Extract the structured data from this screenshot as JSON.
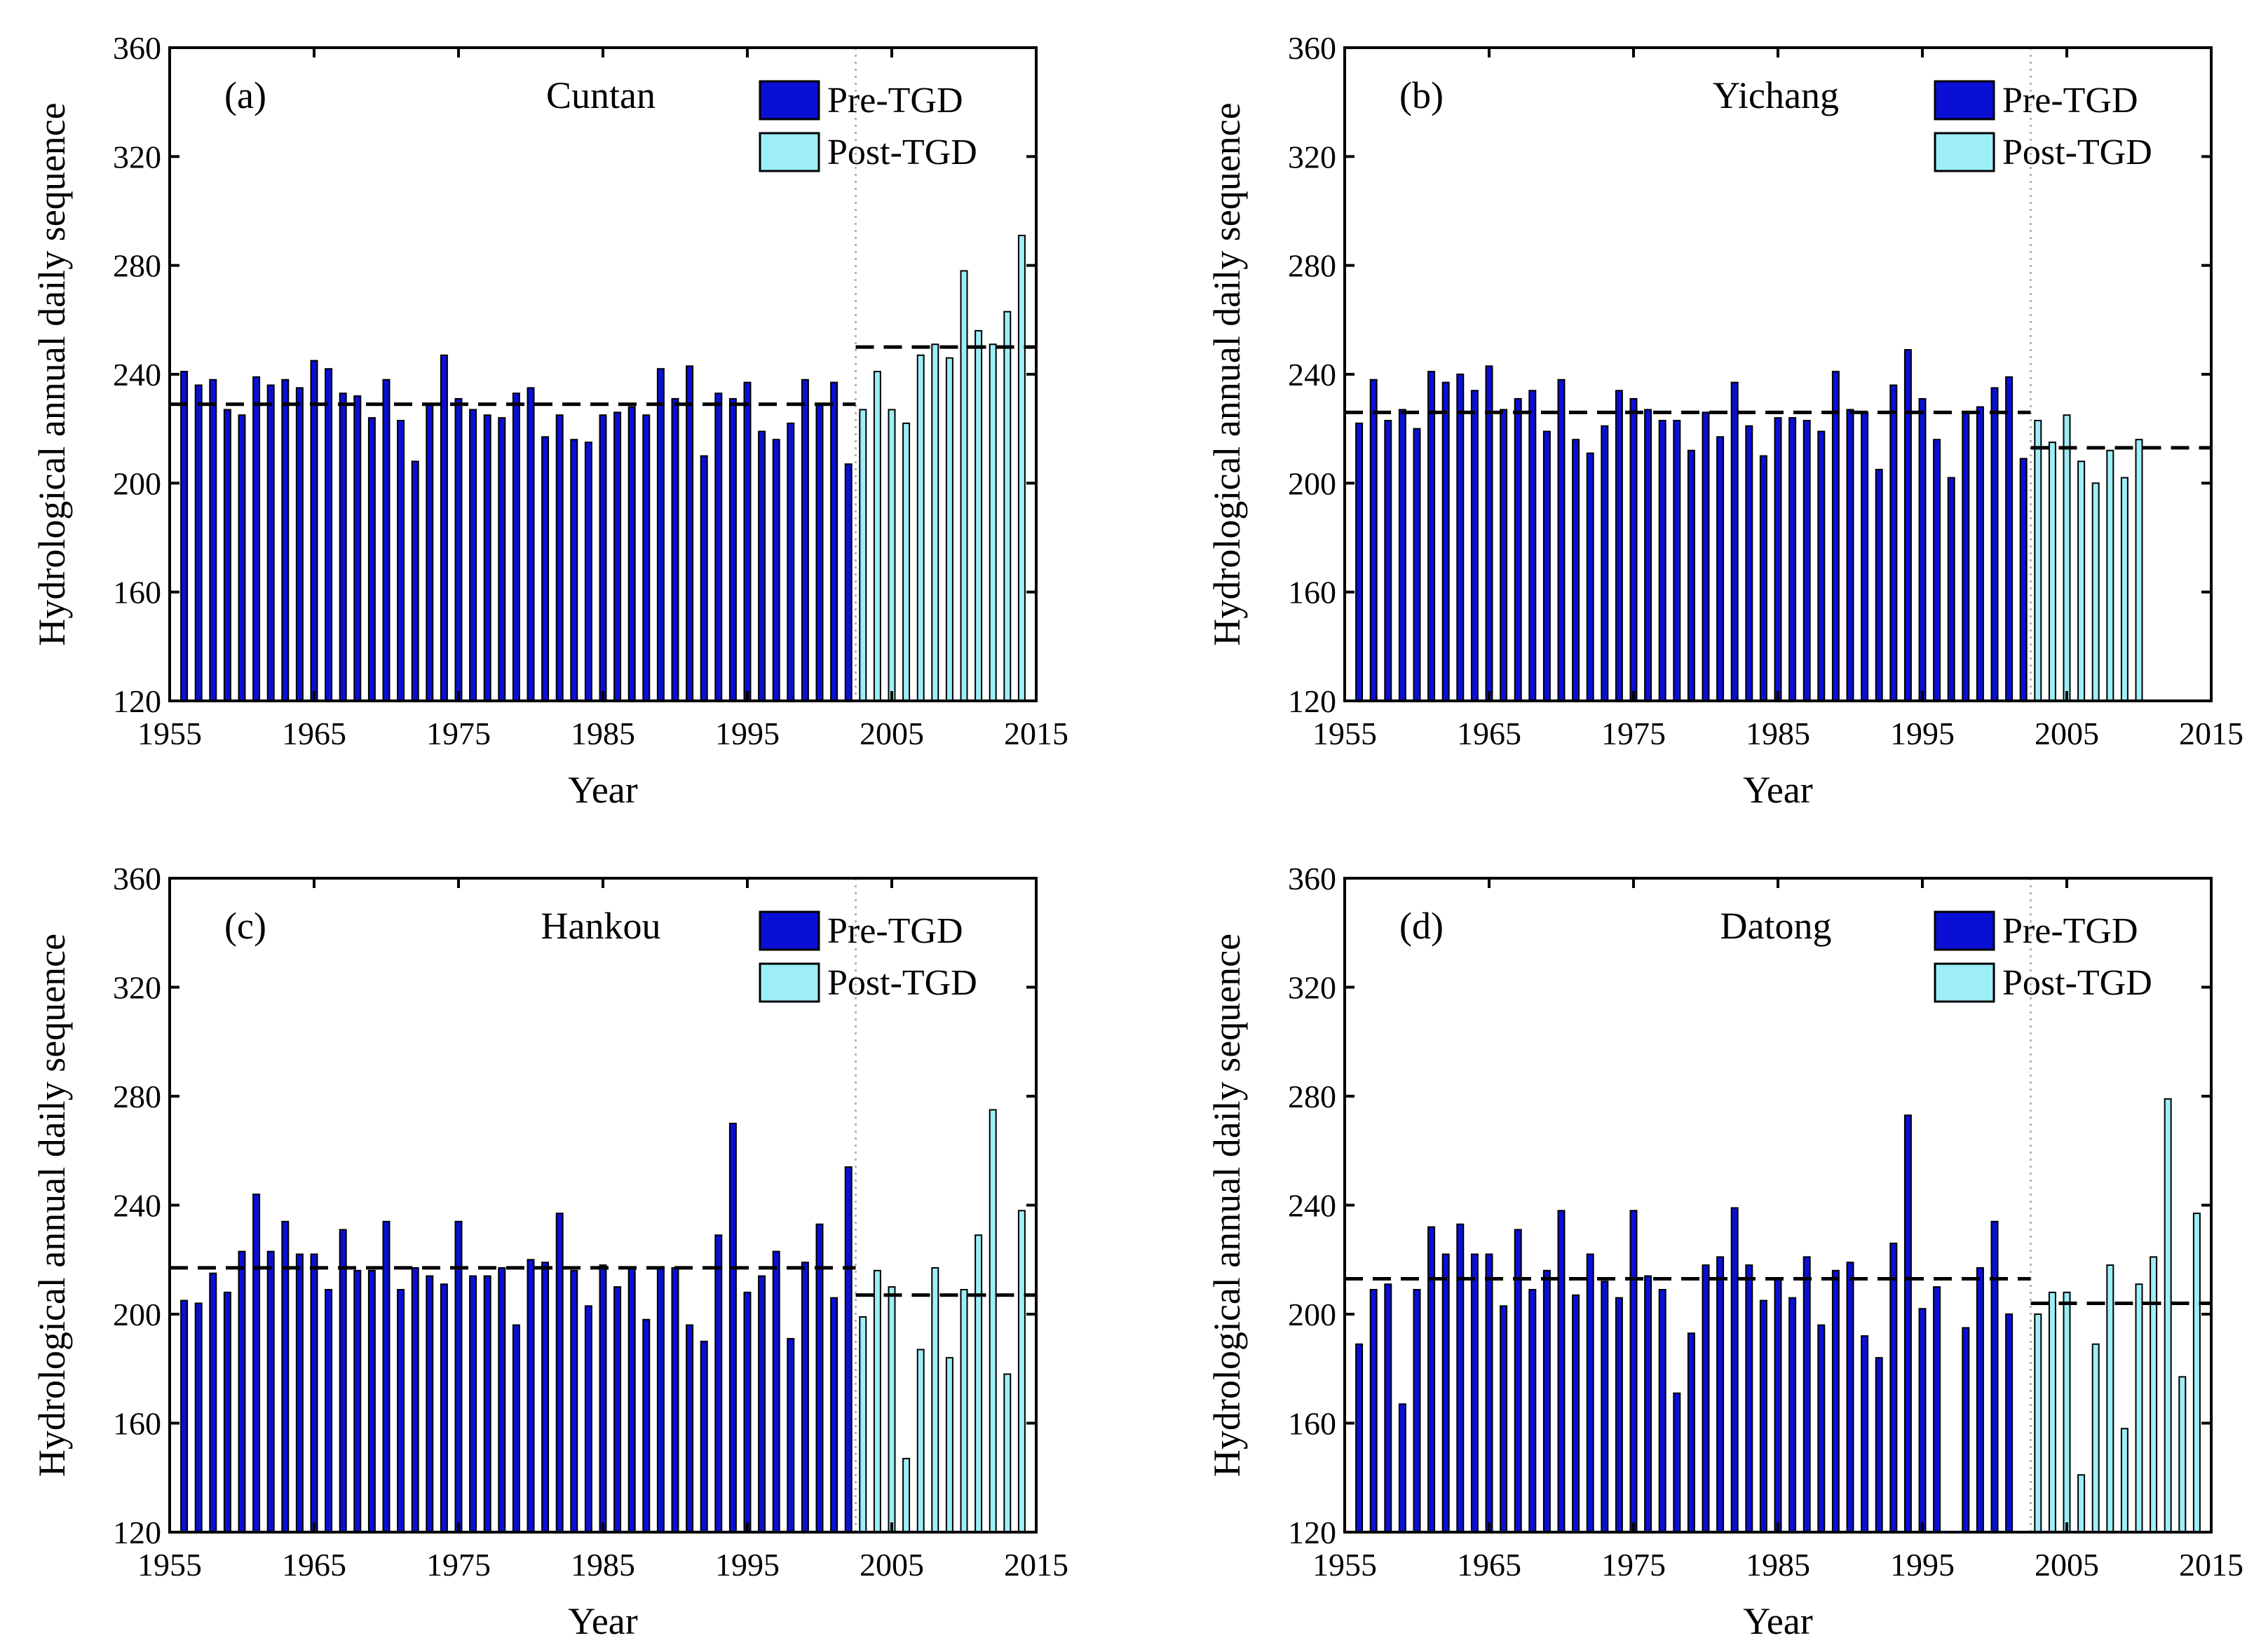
{
  "colors": {
    "pre_tgd": "#0a0fd6",
    "post_tgd": "#9deef6",
    "bar_stroke": "#000000",
    "mean_line": "#000000",
    "divider": "#b4b4b4"
  },
  "chart_data": [
    {
      "type": "bar",
      "panel": "(a)",
      "station": "Cuntan",
      "xlabel": "Year",
      "ylabel": "Hydrological annual daily sequence",
      "xlim": [
        1955,
        2015
      ],
      "ylim": [
        120,
        360
      ],
      "xticks": [
        "1955",
        "1965",
        "1975",
        "1985",
        "1995",
        "2005",
        "2015"
      ],
      "yticks": [
        "120",
        "160",
        "200",
        "240",
        "280",
        "320",
        "360"
      ],
      "legend": {
        "pre_label": "Pre-TGD",
        "post_label": "Post-TGD",
        "position": "top-right"
      },
      "divider_year": 2002.5,
      "pre_mean": 229,
      "post_mean": 250,
      "pre": {
        "years": [
          1956,
          1957,
          1958,
          1959,
          1960,
          1961,
          1962,
          1963,
          1964,
          1965,
          1966,
          1967,
          1968,
          1969,
          1970,
          1971,
          1972,
          1973,
          1974,
          1975,
          1976,
          1977,
          1978,
          1979,
          1980,
          1981,
          1982,
          1983,
          1984,
          1985,
          1986,
          1987,
          1988,
          1989,
          1990,
          1991,
          1992,
          1993,
          1994,
          1995,
          1996,
          1997,
          1998,
          1999,
          2000,
          2001,
          2002
        ],
        "values": [
          241,
          236,
          238,
          227,
          225,
          239,
          236,
          238,
          235,
          245,
          242,
          233,
          232,
          224,
          238,
          223,
          208,
          229,
          247,
          231,
          227,
          225,
          224,
          233,
          235,
          217,
          225,
          216,
          215,
          225,
          226,
          228,
          225,
          242,
          231,
          243,
          210,
          233,
          231,
          237,
          219,
          216,
          222,
          238,
          229,
          237,
          207
        ]
      },
      "post": {
        "years": [
          2003,
          2004,
          2005,
          2006,
          2007,
          2008,
          2009,
          2010,
          2011,
          2012,
          2013,
          2014
        ],
        "values": [
          227,
          241,
          227,
          222,
          247,
          251,
          246,
          278,
          256,
          251,
          263,
          291
        ]
      }
    },
    {
      "type": "bar",
      "panel": "(b)",
      "station": "Yichang",
      "xlabel": "Year",
      "ylabel": "Hydrological annual daily sequence",
      "xlim": [
        1955,
        2015
      ],
      "ylim": [
        120,
        360
      ],
      "xticks": [
        "1955",
        "1965",
        "1975",
        "1985",
        "1995",
        "2005",
        "2015"
      ],
      "yticks": [
        "120",
        "160",
        "200",
        "240",
        "280",
        "320",
        "360"
      ],
      "legend": {
        "pre_label": "Pre-TGD",
        "post_label": "Post-TGD",
        "position": "top-right"
      },
      "divider_year": 2002.5,
      "pre_mean": 226,
      "post_mean": 213,
      "pre": {
        "years": [
          1956,
          1957,
          1958,
          1959,
          1960,
          1961,
          1962,
          1963,
          1964,
          1965,
          1966,
          1967,
          1968,
          1969,
          1970,
          1971,
          1972,
          1973,
          1974,
          1975,
          1976,
          1977,
          1978,
          1979,
          1980,
          1981,
          1982,
          1983,
          1984,
          1985,
          1986,
          1987,
          1988,
          1989,
          1990,
          1991,
          1992,
          1993,
          1994,
          1995,
          1996,
          1997,
          1998,
          1999,
          2000,
          2001,
          2002
        ],
        "values": [
          222,
          238,
          223,
          227,
          220,
          241,
          237,
          240,
          234,
          243,
          227,
          231,
          234,
          219,
          238,
          216,
          211,
          221,
          234,
          231,
          227,
          223,
          223,
          212,
          226,
          217,
          237,
          221,
          210,
          224,
          224,
          223,
          219,
          241,
          227,
          226,
          205,
          236,
          249,
          231,
          216,
          202,
          226,
          228,
          235,
          239,
          209
        ]
      },
      "post": {
        "years": [
          2003,
          2004,
          2005,
          2006,
          2007,
          2008,
          2009,
          2010
        ],
        "values": [
          223,
          215,
          225,
          208,
          200,
          212,
          202,
          216
        ]
      }
    },
    {
      "type": "bar",
      "panel": "(c)",
      "station": "Hankou",
      "xlabel": "Year",
      "ylabel": "Hydrological annual daily sequence",
      "xlim": [
        1955,
        2015
      ],
      "ylim": [
        120,
        360
      ],
      "xticks": [
        "1955",
        "1965",
        "1975",
        "1985",
        "1995",
        "2005",
        "2015"
      ],
      "yticks": [
        "120",
        "160",
        "200",
        "240",
        "280",
        "320",
        "360"
      ],
      "legend": {
        "pre_label": "Pre-TGD",
        "post_label": "Post-TGD",
        "position": "top-right"
      },
      "divider_year": 2002.5,
      "pre_mean": 217,
      "post_mean": 207,
      "pre": {
        "years": [
          1956,
          1957,
          1958,
          1959,
          1960,
          1961,
          1962,
          1963,
          1964,
          1965,
          1966,
          1967,
          1968,
          1969,
          1970,
          1971,
          1972,
          1973,
          1974,
          1975,
          1976,
          1977,
          1978,
          1979,
          1980,
          1981,
          1982,
          1983,
          1984,
          1985,
          1986,
          1987,
          1988,
          1989,
          1990,
          1991,
          1992,
          1993,
          1994,
          1995,
          1996,
          1997,
          1998,
          1999,
          2000,
          2001,
          2002
        ],
        "values": [
          205,
          204,
          215,
          208,
          223,
          244,
          223,
          234,
          222,
          222,
          209,
          231,
          216,
          216,
          234,
          209,
          217,
          214,
          211,
          234,
          214,
          214,
          217,
          196,
          220,
          219,
          237,
          216,
          203,
          218,
          210,
          217,
          198,
          217,
          217,
          196,
          190,
          229,
          270,
          208,
          214,
          223,
          191,
          219,
          233,
          206,
          254
        ]
      },
      "post": {
        "years": [
          2003,
          2004,
          2005,
          2006,
          2007,
          2008,
          2009,
          2010,
          2011,
          2012,
          2013,
          2014
        ],
        "values": [
          199,
          216,
          210,
          147,
          187,
          217,
          184,
          209,
          229,
          275,
          178,
          238
        ]
      }
    },
    {
      "type": "bar",
      "panel": "(d)",
      "station": "Datong",
      "xlabel": "Year",
      "ylabel": "Hydrological annual daily sequence",
      "xlim": [
        1955,
        2015
      ],
      "ylim": [
        120,
        360
      ],
      "xticks": [
        "1955",
        "1965",
        "1975",
        "1985",
        "1995",
        "2005",
        "2015"
      ],
      "yticks": [
        "120",
        "160",
        "200",
        "240",
        "280",
        "320",
        "360"
      ],
      "legend": {
        "pre_label": "Pre-TGD",
        "post_label": "Post-TGD",
        "position": "top-right"
      },
      "divider_year": 2002.5,
      "pre_mean": 213,
      "post_mean": 204,
      "pre": {
        "years": [
          1956,
          1957,
          1958,
          1959,
          1960,
          1961,
          1962,
          1963,
          1964,
          1965,
          1966,
          1967,
          1968,
          1969,
          1970,
          1971,
          1972,
          1973,
          1974,
          1975,
          1976,
          1977,
          1978,
          1979,
          1980,
          1981,
          1982,
          1983,
          1984,
          1985,
          1986,
          1987,
          1988,
          1989,
          1990,
          1991,
          1992,
          1993,
          1994,
          1995,
          1996,
          1998,
          1999,
          2000,
          2001
        ],
        "values": [
          189,
          209,
          211,
          167,
          209,
          232,
          222,
          233,
          222,
          222,
          203,
          231,
          209,
          216,
          238,
          207,
          222,
          212,
          206,
          238,
          214,
          209,
          171,
          193,
          218,
          221,
          239,
          218,
          205,
          213,
          206,
          221,
          196,
          216,
          219,
          192,
          184,
          226,
          273,
          202,
          210,
          195,
          217,
          234,
          200
        ]
      },
      "post": {
        "years": [
          2003,
          2004,
          2005,
          2006,
          2007,
          2008,
          2009,
          2010,
          2011,
          2012,
          2013,
          2014
        ],
        "values": [
          200,
          208,
          208,
          141,
          189,
          218,
          158,
          211,
          221,
          279,
          177,
          237
        ]
      }
    }
  ]
}
